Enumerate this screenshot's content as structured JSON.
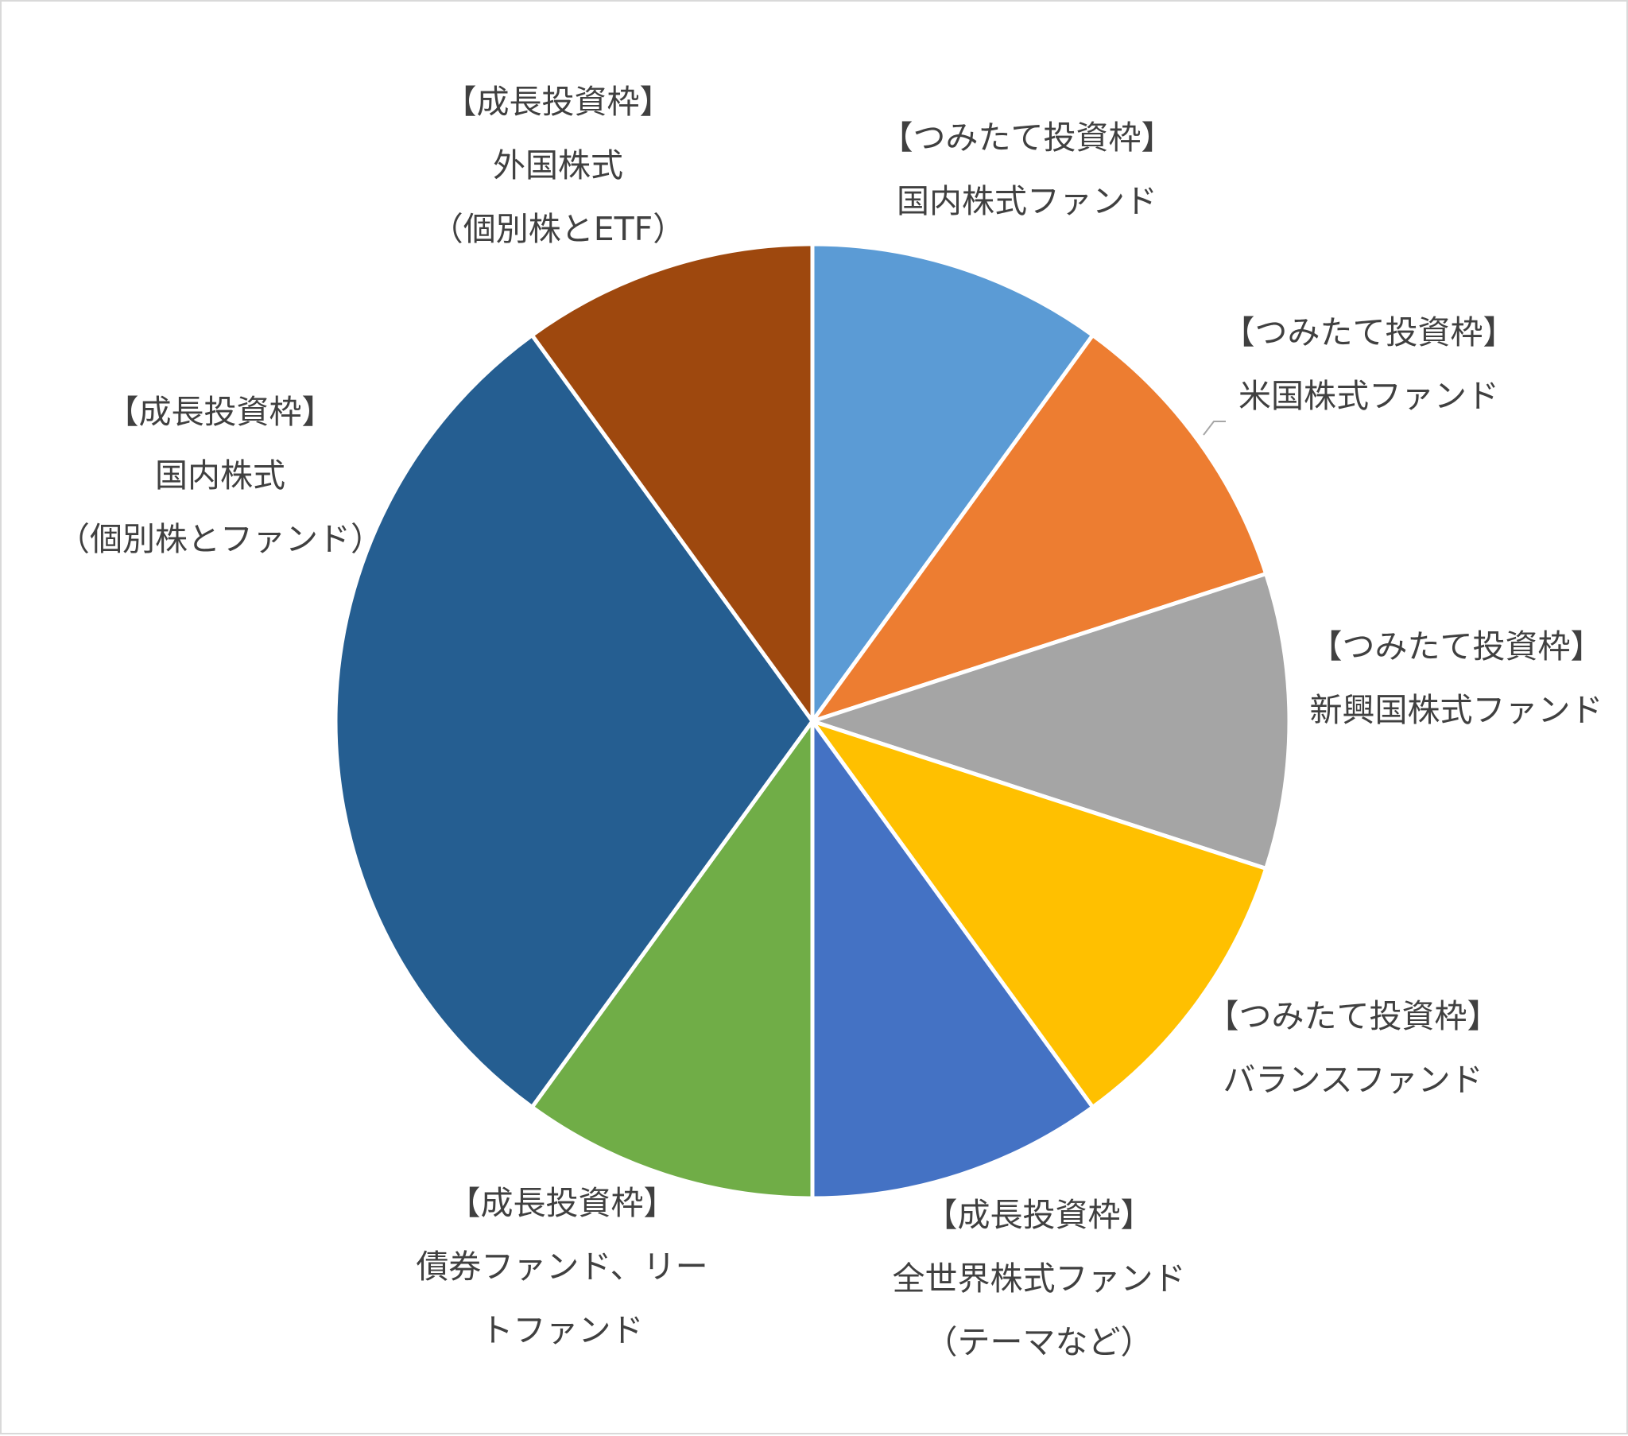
{
  "chart_data": {
    "type": "pie",
    "title": "",
    "start_angle_deg": 0,
    "direction": "clockwise",
    "slices": [
      {
        "label": [
          "【つみたて投資枠】",
          "国内株式ファンド"
        ],
        "value": 10,
        "color": "#5b9bd5"
      },
      {
        "label": [
          "【つみたて投資枠】",
          "米国株式ファンド"
        ],
        "value": 10,
        "color": "#ed7d31"
      },
      {
        "label": [
          "【つみたて投資枠】",
          "新興国株式ファンド"
        ],
        "value": 10,
        "color": "#a5a5a5"
      },
      {
        "label": [
          "【つみたて投資枠】",
          "バランスファンド"
        ],
        "value": 10,
        "color": "#ffc000"
      },
      {
        "label": [
          "【成長投資枠】",
          "全世界株式ファンド",
          "（テーマなど）"
        ],
        "value": 10,
        "color": "#4472c4"
      },
      {
        "label": [
          "【成長投資枠】",
          "債券ファンド、リー",
          "トファンド"
        ],
        "value": 10,
        "color": "#70ad47"
      },
      {
        "label": [
          "【成長投資枠】",
          "国内株式",
          "（個別株とファンド）"
        ],
        "value": 30,
        "color": "#255e91"
      },
      {
        "label": [
          "【成長投資枠】",
          "外国株式",
          "（個別株とETF）"
        ],
        "value": 10,
        "color": "#9e480e"
      }
    ],
    "legend": "none",
    "label_position": "outside"
  }
}
